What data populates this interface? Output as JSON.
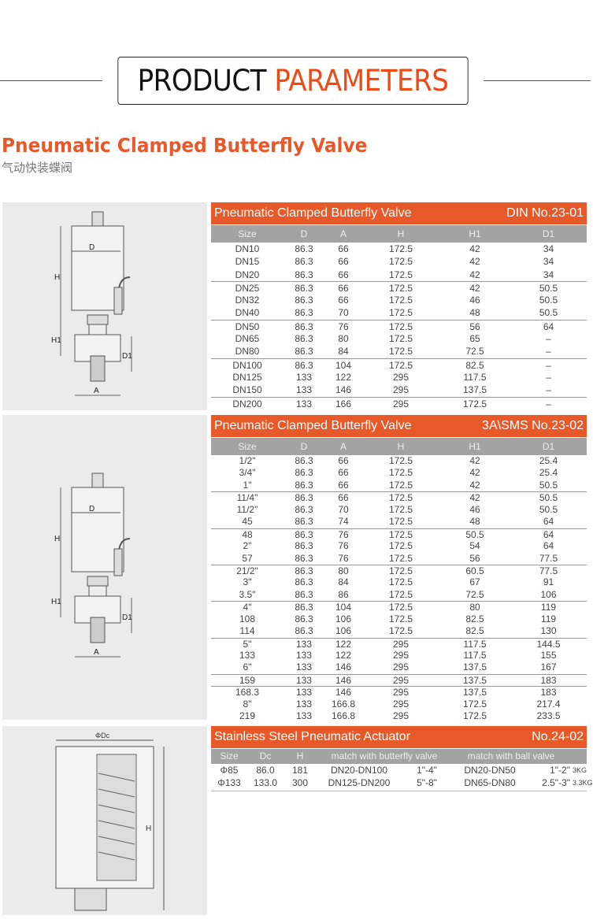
{
  "header": {
    "title_black": "PRODUCT",
    "title_orange": "PARAMETERS"
  },
  "product": {
    "title": "Pneumatic Clamped Butterfly Valve",
    "subtitle_cn": "气动快装蝶阀"
  },
  "colors": {
    "accent": "#e8592a",
    "column_header": "#a3a3a3",
    "image_bg": "#ebebeb"
  },
  "drawing_labels": {
    "D": "D",
    "H": "H",
    "H1": "H1",
    "D1": "D1",
    "A": "A",
    "Dc": "ΦDc"
  },
  "table_din": {
    "title": "Pneumatic Clamped Butterfly Valve",
    "standard": "DIN  No.23-01",
    "columns": [
      "Size",
      "D",
      "A",
      "H",
      "H1",
      "D1"
    ],
    "groups": [
      3,
      3,
      3,
      3,
      1
    ],
    "rows": [
      [
        "DN10",
        "86.3",
        "66",
        "172.5",
        "42",
        "34"
      ],
      [
        "DN15",
        "86.3",
        "66",
        "172.5",
        "42",
        "34"
      ],
      [
        "DN20",
        "86.3",
        "66",
        "172.5",
        "42",
        "34"
      ],
      [
        "DN25",
        "86.3",
        "66",
        "172.5",
        "42",
        "50.5"
      ],
      [
        "DN32",
        "86.3",
        "66",
        "172.5",
        "46",
        "50.5"
      ],
      [
        "DN40",
        "86.3",
        "70",
        "172.5",
        "48",
        "50.5"
      ],
      [
        "DN50",
        "86.3",
        "76",
        "172.5",
        "56",
        "64"
      ],
      [
        "DN65",
        "86.3",
        "80",
        "172.5",
        "65",
        "–"
      ],
      [
        "DN80",
        "86.3",
        "84",
        "172.5",
        "72.5",
        "–"
      ],
      [
        "DN100",
        "86.3",
        "104",
        "172.5",
        "82.5",
        "–"
      ],
      [
        "DN125",
        "133",
        "122",
        "295",
        "117.5",
        "–"
      ],
      [
        "DN150",
        "133",
        "146",
        "295",
        "137.5",
        "–"
      ],
      [
        "DN200",
        "133",
        "166",
        "295",
        "172.5",
        "–"
      ]
    ]
  },
  "table_sms": {
    "title": "Pneumatic Clamped Butterfly Valve",
    "standard": "3A\\SMS    No.23-02",
    "columns": [
      "Size",
      "D",
      "A",
      "H",
      "H1",
      "D1"
    ],
    "groups": [
      3,
      3,
      3,
      3,
      3,
      3,
      1
    ],
    "rows": [
      [
        "1/2\"",
        "86.3",
        "66",
        "172.5",
        "42",
        "25.4"
      ],
      [
        "3/4\"",
        "86.3",
        "66",
        "172.5",
        "42",
        "25.4"
      ],
      [
        "1\"",
        "86.3",
        "66",
        "172.5",
        "42",
        "50.5"
      ],
      [
        "11/4\"",
        "86.3",
        "66",
        "172.5",
        "42",
        "50.5"
      ],
      [
        "11/2\"",
        "86.3",
        "70",
        "172.5",
        "46",
        "50.5"
      ],
      [
        "45",
        "86.3",
        "74",
        "172.5",
        "48",
        "64"
      ],
      [
        "48",
        "86.3",
        "76",
        "172.5",
        "50.5",
        "64"
      ],
      [
        "2\"",
        "86.3",
        "76",
        "172.5",
        "54",
        "64"
      ],
      [
        "57",
        "86.3",
        "76",
        "172.5",
        "56",
        "77.5"
      ],
      [
        "21/2\"",
        "86.3",
        "80",
        "172.5",
        "60.5",
        "77.5"
      ],
      [
        "3\"",
        "86.3",
        "84",
        "172.5",
        "67",
        "91"
      ],
      [
        "3.5\"",
        "86.3",
        "86",
        "172.5",
        "72.5",
        "106"
      ],
      [
        "4\"",
        "86.3",
        "104",
        "172.5",
        "80",
        "119"
      ],
      [
        "108",
        "86.3",
        "106",
        "172.5",
        "82.5",
        "119"
      ],
      [
        "114",
        "86.3",
        "106",
        "172.5",
        "82.5",
        "130"
      ],
      [
        "5\"",
        "133",
        "122",
        "295",
        "117.5",
        "144.5"
      ],
      [
        "133",
        "133",
        "122",
        "295",
        "117.5",
        "155"
      ],
      [
        "6\"",
        "133",
        "146",
        "295",
        "137.5",
        "167"
      ],
      [
        "159",
        "133",
        "146",
        "295",
        "137.5",
        "183"
      ],
      [
        "168.3",
        "133",
        "146",
        "295",
        "137.5",
        "183"
      ],
      [
        "8\"",
        "133",
        "166.8",
        "295",
        "172.5",
        "217.4"
      ],
      [
        "219",
        "133",
        "166.8",
        "295",
        "172.5",
        "233.5"
      ]
    ]
  },
  "table_actuator": {
    "title": "Stainless Steel Pneumatic Actuator",
    "standard": "No.24-02",
    "columns": [
      "Size",
      "Dc",
      "H",
      "match with butterfly valve",
      "match with ball valve"
    ],
    "rows": [
      [
        "Φ85",
        "86.0",
        "181",
        "DN20-DN100",
        "1\"-4\"",
        "DN20-DN50",
        "1\"-2\"",
        "3KG"
      ],
      [
        "Φ133",
        "133.0",
        "300",
        "DN125-DN200",
        "5\"-8\"",
        "DN65-DN80",
        "2.5\"-3\"",
        "3.3KG"
      ]
    ]
  }
}
